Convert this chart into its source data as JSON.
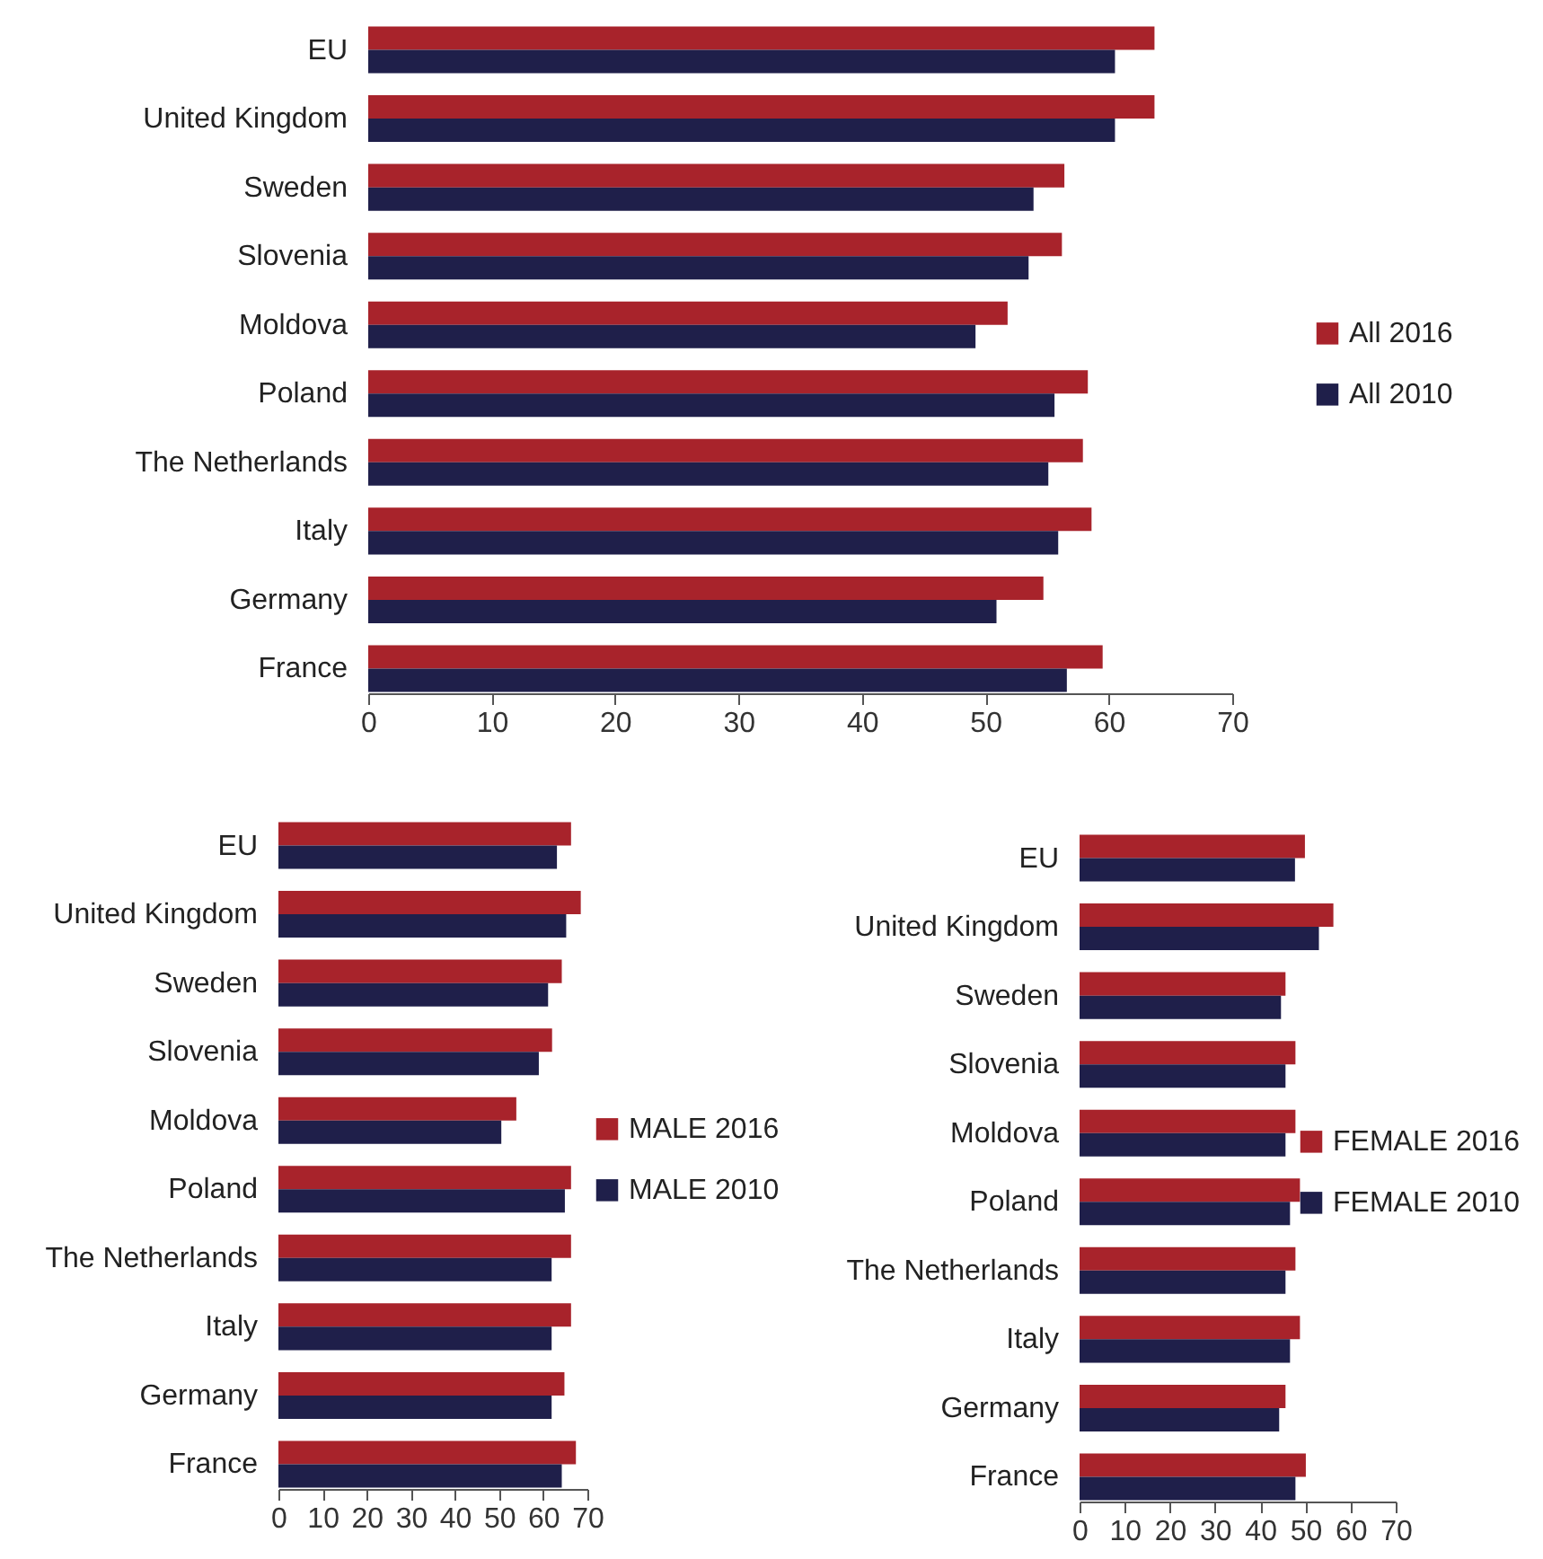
{
  "chart_data": [
    {
      "type": "bar",
      "orientation": "horizontal",
      "categories": [
        "EU",
        "United Kingdom",
        "Sweden",
        "Slovenia",
        "Moldova",
        "Poland",
        "The Netherlands",
        "Italy",
        "Germany",
        "France"
      ],
      "series": [
        {
          "name": "All 2016",
          "color": "#a8232b",
          "values": [
            63.7,
            63.7,
            56.4,
            56.2,
            51.8,
            58.3,
            57.9,
            58.6,
            54.7,
            59.5
          ]
        },
        {
          "name": "All 2010",
          "color": "#1f1f4a",
          "values": [
            60.5,
            60.5,
            53.9,
            53.5,
            49.2,
            55.6,
            55.1,
            55.9,
            50.9,
            56.6
          ]
        }
      ],
      "xlim": [
        0,
        70
      ],
      "xticks": [
        0,
        10,
        20,
        30,
        40,
        50,
        60,
        70
      ],
      "legend": "right"
    },
    {
      "type": "bar",
      "orientation": "horizontal",
      "categories": [
        "EU",
        "United Kingdom",
        "Sweden",
        "Slovenia",
        "Moldova",
        "Poland",
        "The Netherlands",
        "Italy",
        "Germany",
        "France"
      ],
      "series": [
        {
          "name": "MALE 2016",
          "color": "#a8232b",
          "values": [
            66.3,
            68.5,
            64.2,
            62.0,
            53.9,
            66.3,
            66.3,
            66.3,
            64.8,
            67.4
          ]
        },
        {
          "name": "MALE 2010",
          "color": "#1f1f4a",
          "values": [
            63.1,
            65.2,
            61.1,
            59.0,
            50.5,
            64.9,
            61.9,
            61.9,
            61.9,
            64.2
          ]
        }
      ],
      "xlim": [
        0,
        70
      ],
      "xticks": [
        0,
        10,
        20,
        30,
        40,
        50,
        60,
        70
      ],
      "legend": "right"
    },
    {
      "type": "bar",
      "orientation": "horizontal",
      "categories": [
        "EU",
        "United Kingdom",
        "Sweden",
        "Slovenia",
        "Moldova",
        "Poland",
        "The Netherlands",
        "Italy",
        "Germany",
        "France"
      ],
      "series": [
        {
          "name": "FEMALE 2016",
          "color": "#a8232b",
          "values": [
            49.9,
            56.2,
            45.6,
            47.8,
            47.8,
            48.8,
            47.8,
            48.8,
            45.6,
            50.1
          ]
        },
        {
          "name": "FEMALE 2010",
          "color": "#1f1f4a",
          "values": [
            47.7,
            53.0,
            44.6,
            45.6,
            45.6,
            46.6,
            45.6,
            46.6,
            44.2,
            47.8
          ]
        }
      ],
      "xlim": [
        0,
        70
      ],
      "xticks": [
        0,
        10,
        20,
        30,
        40,
        50,
        60,
        70
      ],
      "legend": "right"
    }
  ]
}
